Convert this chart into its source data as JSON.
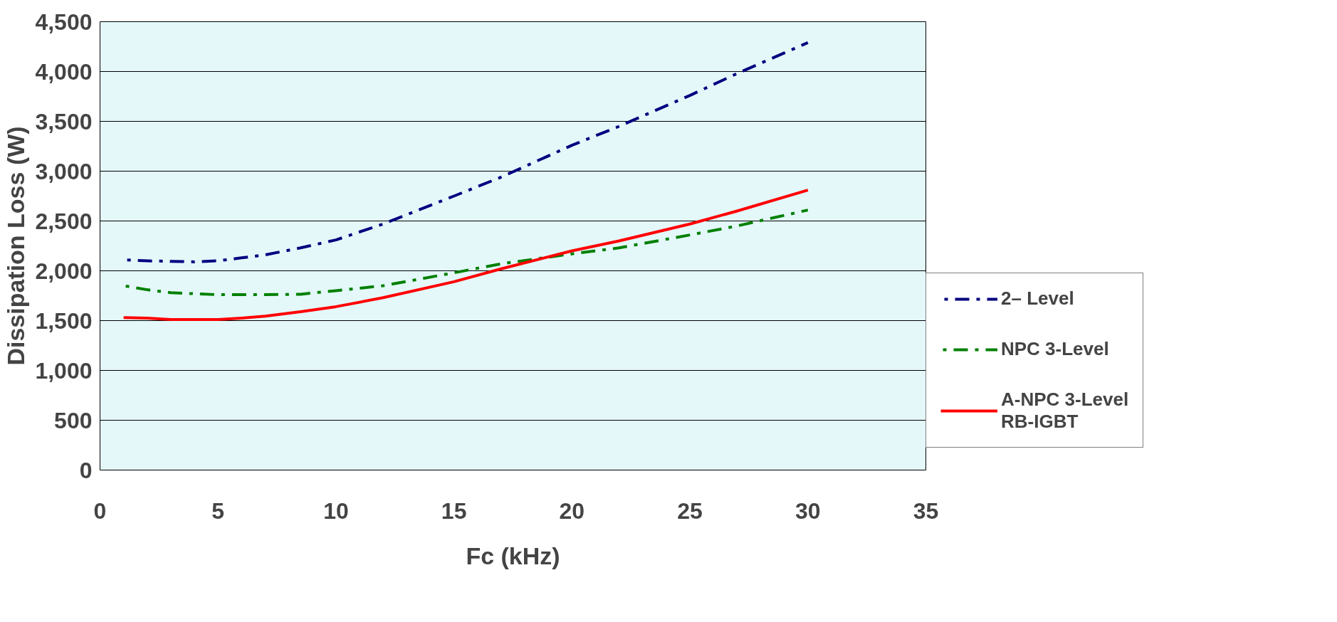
{
  "chart_data": {
    "type": "line",
    "xlabel": "Fc (kHz)",
    "ylabel": "Dissipation Loss (W)",
    "xlim": [
      0,
      35
    ],
    "xticks": [
      0,
      5,
      10,
      15,
      20,
      25,
      30,
      35
    ],
    "ylim": [
      0,
      4500
    ],
    "yticks": [
      0,
      500,
      {
        "value": 1000,
        "label": "1,000"
      },
      {
        "value": 1500,
        "label": "1,500"
      },
      {
        "value": 2000,
        "label": "2,000"
      },
      {
        "value": 2500,
        "label": "2,500"
      },
      {
        "value": 3000,
        "label": "3,000"
      },
      {
        "value": 3500,
        "label": "3,500"
      },
      {
        "value": 4000,
        "label": "4,000"
      },
      {
        "value": 4500,
        "label": "4,500"
      }
    ],
    "grid": "y",
    "legend": "right",
    "marker": "none",
    "x": [
      1,
      2,
      3,
      4,
      5,
      6,
      7,
      8.5,
      10,
      12,
      15,
      17,
      20,
      22,
      25,
      27,
      30
    ],
    "series": [
      {
        "name": "2– Level",
        "color": "#000080",
        "line_style": "dashed",
        "values": [
          2110,
          2100,
          2095,
          2090,
          2100,
          2130,
          2160,
          2230,
          2310,
          2470,
          2750,
          2940,
          3260,
          3450,
          3760,
          3980,
          4290
        ]
      },
      {
        "name": "NPC 3-Level",
        "color": "#008000",
        "line_style": "dashed",
        "values": [
          1850,
          1810,
          1780,
          1770,
          1760,
          1760,
          1760,
          1765,
          1800,
          1850,
          1980,
          2070,
          2170,
          2230,
          2360,
          2450,
          2610
        ]
      },
      {
        "name": "A-NPC 3-Level\nRB-IGBT",
        "color": "#ff0000",
        "line_style": "solid",
        "values": [
          1530,
          1525,
          1510,
          1510,
          1510,
          1525,
          1545,
          1590,
          1640,
          1730,
          1890,
          2020,
          2200,
          2300,
          2470,
          2600,
          2810
        ]
      }
    ]
  }
}
